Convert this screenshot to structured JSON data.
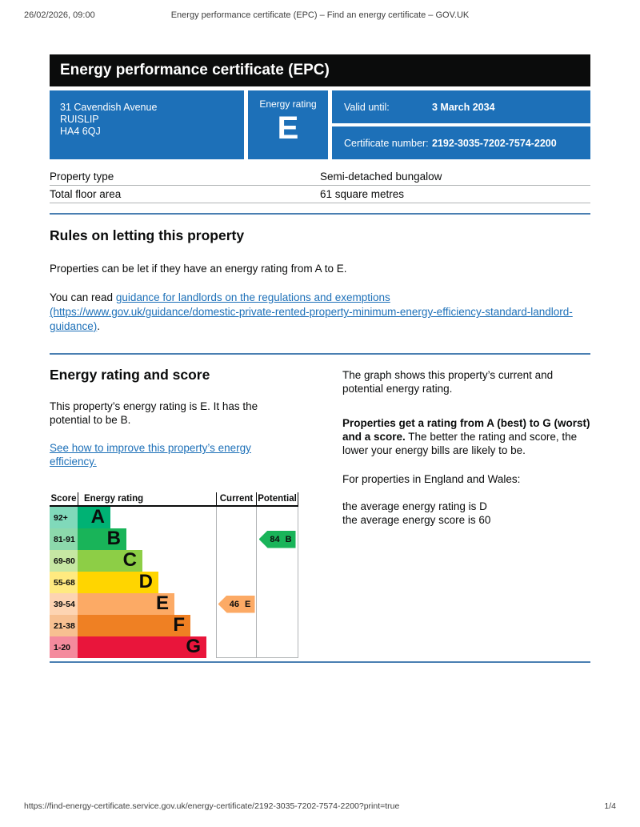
{
  "print_header": {
    "datetime": "26/02/2026, 09:00",
    "title": "Energy performance certificate (EPC) – Find an energy certificate – GOV.UK"
  },
  "print_footer": {
    "url": "https://find-energy-certificate.service.gov.uk/energy-certificate/2192-3035-7202-7574-2200?print=true",
    "page_indicator": "1/4"
  },
  "banner": {
    "title": "Energy performance certificate (EPC)"
  },
  "summary": {
    "address_lines": [
      "31 Cavendish Avenue",
      "RUISLIP",
      "HA4 6QJ"
    ],
    "energy_rating_label": "Energy rating",
    "energy_rating": "E",
    "valid_until_label": "Valid until:",
    "valid_until_value": "3 March 2034",
    "certificate_number_label": "Certificate number:",
    "certificate_number_value": "2192-3035-7202-7574-2200",
    "box_color": "#1d70b8"
  },
  "property_details": {
    "rows": [
      {
        "label": "Property type",
        "value": "Semi-detached bungalow"
      },
      {
        "label": "Total floor area",
        "value": "61 square metres"
      }
    ]
  },
  "rules_section": {
    "heading": "Rules on letting this property",
    "paragraph1": "Properties can be let if they have an energy rating from A to E.",
    "paragraph2_prefix": "You can read ",
    "paragraph2_link": "guidance for landlords on the regulations and exemptions (https://www.gov.uk/guidance/domestic-private-rented-property-minimum-energy-efficiency-standard-landlord-guidance)",
    "paragraph2_suffix": "."
  },
  "rating_section": {
    "heading": "Energy rating and score",
    "intro": "This property’s energy rating is E. It has the potential to be B.",
    "improve_link": "See how to improve this property’s energy efficiency.",
    "right_paragraph1": "The graph shows this property’s current and potential energy rating.",
    "right_paragraph2_bold": "Properties get a rating from A (best) to G (worst) and a score.",
    "right_paragraph2_rest": " The better the rating and score, the lower your energy bills are likely to be.",
    "right_paragraph3": "For properties in England and Wales:",
    "average_rating_line": "the average energy rating is D",
    "average_score_line": "the average energy score is 60"
  },
  "chart_data": {
    "type": "epc-rating-chart",
    "headers": [
      "Score",
      "Energy rating",
      "Current",
      "Potential"
    ],
    "bands": [
      {
        "band": "A",
        "score": "92+",
        "color": "#00b274",
        "tint": "#80d9ba"
      },
      {
        "band": "B",
        "score": "81-91",
        "color": "#19b459",
        "tint": "#8cd9ac"
      },
      {
        "band": "C",
        "score": "69-80",
        "color": "#8dce46",
        "tint": "#c6e7a3"
      },
      {
        "band": "D",
        "score": "55-68",
        "color": "#ffd500",
        "tint": "#ffea80"
      },
      {
        "band": "E",
        "score": "39-54",
        "color": "#fcaa65",
        "tint": "#fdd4b2"
      },
      {
        "band": "F",
        "score": "21-38",
        "color": "#ef8023",
        "tint": "#f7c091"
      },
      {
        "band": "G",
        "score": "1-20",
        "color": "#e9153b",
        "tint": "#f48a9d"
      }
    ],
    "current": {
      "score": "46",
      "band": "E",
      "color": "#fcaa65"
    },
    "potential": {
      "score": "84",
      "band": "B",
      "color": "#19b459"
    }
  },
  "colors": {
    "govuk_blue": "#1d70b8",
    "banner_black": "#0b0c0c",
    "link_blue": "#1d70b8",
    "divider_blue": "#4a7fb2",
    "border_grey": "#b1b4b6"
  }
}
